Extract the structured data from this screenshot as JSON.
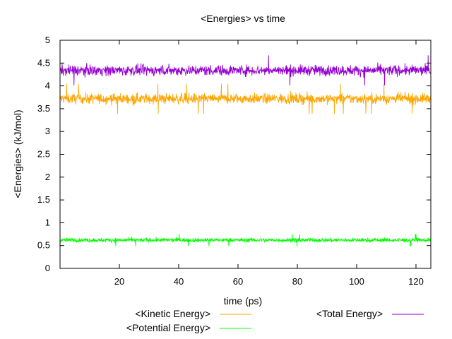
{
  "chart_data": {
    "type": "line",
    "title": "<Energies> vs time",
    "xlabel": "time (ps)",
    "ylabel": "<Energies> (kJ/mol)",
    "xlim": [
      0,
      125
    ],
    "ylim": [
      0,
      5
    ],
    "xticks": [
      "20",
      "40",
      "60",
      "80",
      "100",
      "120"
    ],
    "yticks": [
      "0",
      "0.5",
      "1",
      "1.5",
      "2",
      "2.5",
      "3",
      "3.5",
      "4",
      "4.5",
      "5"
    ],
    "grid": false,
    "legend_position": "bottom",
    "series": [
      {
        "name": "<Kinetic Energy>",
        "color": "#ffa500",
        "mean": 3.72,
        "amplitude": 0.15,
        "spike_max": 4.08,
        "spike_min": 3.35
      },
      {
        "name": "<Potential Energy>",
        "color": "#00ff00",
        "mean": 0.62,
        "amplitude": 0.06,
        "spike_max": 0.8,
        "spike_min": 0.48
      },
      {
        "name": "<Total Energy>",
        "color": "#9400d3",
        "mean": 4.34,
        "amplitude": 0.15,
        "spike_max": 4.93,
        "spike_min": 4.0
      }
    ]
  }
}
